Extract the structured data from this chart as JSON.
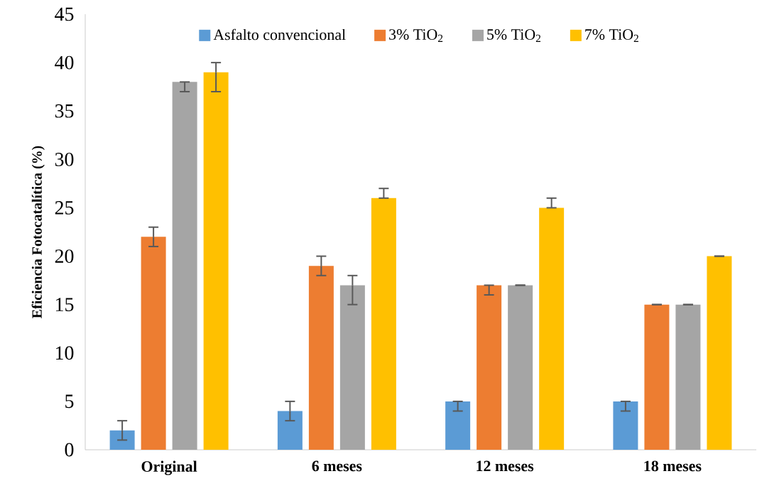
{
  "chart_data": {
    "type": "bar",
    "ylabel": "**Eficiencia Fotocatalítica (%)**",
    "categories": [
      "**Original**",
      "**6 meses**",
      "**12 meses**",
      "**18 meses**"
    ],
    "series": [
      {
        "name": "Asfalto convencional",
        "color": "#5b9bd5",
        "values": [
          2,
          4,
          5,
          5
        ],
        "errors": [
          1,
          [
            3,
            5
          ],
          [
            4,
            5
          ],
          [
            4,
            5
          ]
        ]
      },
      {
        "name": "3% TiO$_{2}$",
        "color": "#ed7d31",
        "values": [
          22,
          19,
          17,
          15
        ],
        "errors": [
          1,
          1,
          [
            16,
            17
          ],
          0
        ]
      },
      {
        "name": "5% TiO$_{2}$",
        "color": "#a5a5a5",
        "values": [
          38,
          17,
          17,
          15
        ],
        "errors": [
          [
            37,
            38
          ],
          [
            15,
            18
          ],
          0,
          0
        ]
      },
      {
        "name": "7% TiO$_{2}$",
        "color": "#ffc000",
        "values": [
          39,
          26,
          25,
          20
        ],
        "errors": [
          [
            37,
            40
          ],
          [
            26,
            27
          ],
          [
            25,
            26
          ],
          0
        ]
      }
    ],
    "ylim": [
      0,
      45
    ],
    "yticks": [
      0,
      5,
      10,
      15,
      20,
      25,
      30,
      35,
      40,
      45
    ],
    "grid": false,
    "legend": "top"
  }
}
